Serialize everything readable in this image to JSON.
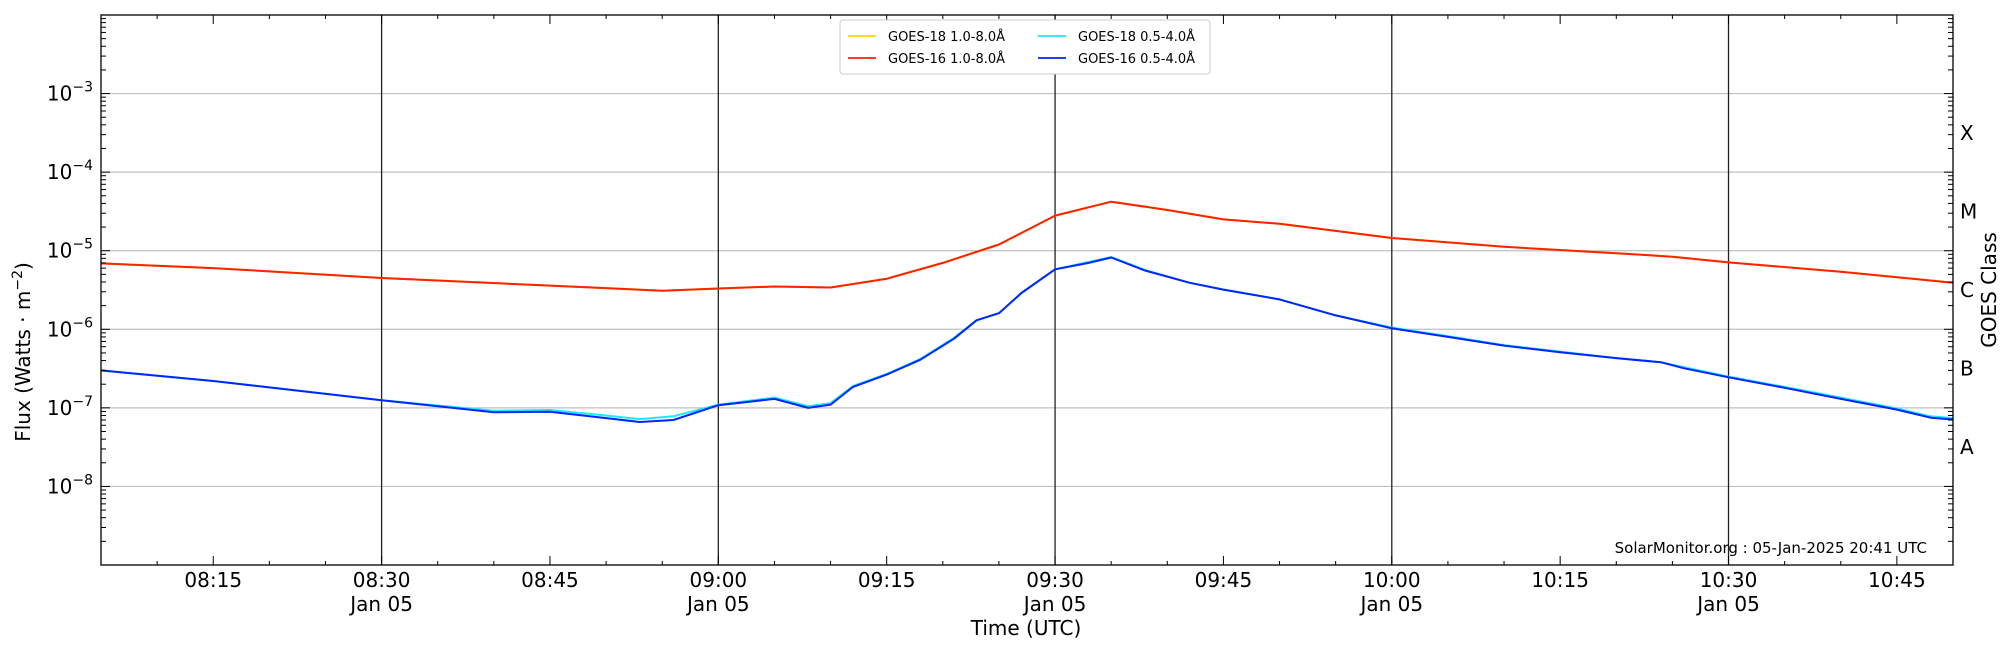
{
  "chart_data": {
    "type": "line",
    "xlabel": "Time (UTC)",
    "ylabel": "Flux (Watts · m",
    "ylabel_sup": "−2",
    "ylabel_end": ")",
    "right_label": "GOES Class",
    "credit": "SolarMonitor.org : 05-Jan-2025 20:41 UTC",
    "yscale": "log",
    "ylim": [
      1e-09,
      0.01
    ],
    "xlim": [
      "08:05",
      "10:50"
    ],
    "grid": "horizontal",
    "legend_position": "top-center",
    "y_ticks": [
      {
        "value": 1e-08,
        "base": "10",
        "exp": "−8"
      },
      {
        "value": 1e-07,
        "base": "10",
        "exp": "−7"
      },
      {
        "value": 1e-06,
        "base": "10",
        "exp": "−6"
      },
      {
        "value": 1e-05,
        "base": "10",
        "exp": "−5"
      },
      {
        "value": 0.0001,
        "base": "10",
        "exp": "−4"
      },
      {
        "value": 0.001,
        "base": "10",
        "exp": "−3"
      }
    ],
    "goes_classes": [
      {
        "label": "A",
        "value": 3.16e-08
      },
      {
        "label": "B",
        "value": 3.16e-07
      },
      {
        "label": "C",
        "value": 3.16e-06
      },
      {
        "label": "M",
        "value": 3.16e-05
      },
      {
        "label": "X",
        "value": 0.000316
      }
    ],
    "x_ticks": [
      {
        "time": "08:15",
        "line1": "08:15",
        "line2": "",
        "major": false
      },
      {
        "time": "08:30",
        "line1": "08:30",
        "line2": "Jan 05",
        "major": true
      },
      {
        "time": "08:45",
        "line1": "08:45",
        "line2": "",
        "major": false
      },
      {
        "time": "09:00",
        "line1": "09:00",
        "line2": "Jan 05",
        "major": true
      },
      {
        "time": "09:15",
        "line1": "09:15",
        "line2": "",
        "major": false
      },
      {
        "time": "09:30",
        "line1": "09:30",
        "line2": "Jan 05",
        "major": true
      },
      {
        "time": "09:45",
        "line1": "09:45",
        "line2": "",
        "major": false
      },
      {
        "time": "10:00",
        "line1": "10:00",
        "line2": "Jan 05",
        "major": true
      },
      {
        "time": "10:15",
        "line1": "10:15",
        "line2": "",
        "major": false
      },
      {
        "time": "10:30",
        "line1": "10:30",
        "line2": "Jan 05",
        "major": true
      },
      {
        "time": "10:45",
        "line1": "10:45",
        "line2": "",
        "major": false
      }
    ],
    "series": [
      {
        "name": "GOES-18 1.0-8.0Å",
        "color": "#ffd700",
        "points": [
          [
            "08:05",
            6.9e-06
          ],
          [
            "08:15",
            6e-06
          ],
          [
            "08:30",
            4.5e-06
          ],
          [
            "08:45",
            3.6e-06
          ],
          [
            "08:55",
            3.1e-06
          ],
          [
            "09:00",
            3.3e-06
          ],
          [
            "09:05",
            3.5e-06
          ],
          [
            "09:10",
            3.4e-06
          ],
          [
            "09:15",
            4.4e-06
          ],
          [
            "09:20",
            7e-06
          ],
          [
            "09:25",
            1.2e-05
          ],
          [
            "09:30",
            2.8e-05
          ],
          [
            "09:35",
            4.2e-05
          ],
          [
            "09:40",
            3.3e-05
          ],
          [
            "09:45",
            2.5e-05
          ],
          [
            "09:50",
            2.2e-05
          ],
          [
            "10:00",
            1.45e-05
          ],
          [
            "10:10",
            1.12e-05
          ],
          [
            "10:20",
            9.3e-06
          ],
          [
            "10:25",
            8.4e-06
          ],
          [
            "10:30",
            7.1e-06
          ],
          [
            "10:40",
            5.4e-06
          ],
          [
            "10:50",
            3.9e-06
          ]
        ]
      },
      {
        "name": "GOES-16 1.0-8.0Å",
        "color": "#ff2200",
        "points": [
          [
            "08:05",
            6.9e-06
          ],
          [
            "08:15",
            6e-06
          ],
          [
            "08:30",
            4.5e-06
          ],
          [
            "08:45",
            3.6e-06
          ],
          [
            "08:55",
            3.1e-06
          ],
          [
            "09:00",
            3.3e-06
          ],
          [
            "09:05",
            3.5e-06
          ],
          [
            "09:10",
            3.4e-06
          ],
          [
            "09:15",
            4.4e-06
          ],
          [
            "09:20",
            7e-06
          ],
          [
            "09:25",
            1.2e-05
          ],
          [
            "09:30",
            2.8e-05
          ],
          [
            "09:35",
            4.2e-05
          ],
          [
            "09:40",
            3.3e-05
          ],
          [
            "09:45",
            2.5e-05
          ],
          [
            "09:50",
            2.2e-05
          ],
          [
            "10:00",
            1.45e-05
          ],
          [
            "10:10",
            1.12e-05
          ],
          [
            "10:20",
            9.3e-06
          ],
          [
            "10:25",
            8.4e-06
          ],
          [
            "10:30",
            7.1e-06
          ],
          [
            "10:40",
            5.4e-06
          ],
          [
            "10:50",
            3.9e-06
          ]
        ]
      },
      {
        "name": "GOES-18 0.5-4.0Å",
        "color": "#22e5ff",
        "points": [
          [
            "08:05",
            3e-07
          ],
          [
            "08:15",
            2.2e-07
          ],
          [
            "08:30",
            1.25e-07
          ],
          [
            "08:40",
            9.2e-08
          ],
          [
            "08:45",
            9.4e-08
          ],
          [
            "08:50",
            8e-08
          ],
          [
            "08:53",
            7.2e-08
          ],
          [
            "08:56",
            7.8e-08
          ],
          [
            "09:00",
            1.1e-07
          ],
          [
            "09:05",
            1.35e-07
          ],
          [
            "09:08",
            1.05e-07
          ],
          [
            "09:10",
            1.15e-07
          ],
          [
            "09:12",
            1.9e-07
          ],
          [
            "09:15",
            2.7e-07
          ],
          [
            "09:18",
            4.2e-07
          ],
          [
            "09:21",
            7.8e-07
          ],
          [
            "09:23",
            1.3e-06
          ],
          [
            "09:25",
            1.6e-06
          ],
          [
            "09:27",
            2.9e-06
          ],
          [
            "09:30",
            5.8e-06
          ],
          [
            "09:33",
            7.2e-06
          ],
          [
            "09:35",
            8.3e-06
          ],
          [
            "09:38",
            5.7e-06
          ],
          [
            "09:42",
            3.9e-06
          ],
          [
            "09:45",
            3.2e-06
          ],
          [
            "09:50",
            2.4e-06
          ],
          [
            "09:55",
            1.5e-06
          ],
          [
            "10:00",
            1.05e-06
          ],
          [
            "10:05",
            8.2e-07
          ],
          [
            "10:10",
            6.3e-07
          ],
          [
            "10:15",
            5.2e-07
          ],
          [
            "10:20",
            4.3e-07
          ],
          [
            "10:24",
            3.8e-07
          ],
          [
            "10:26",
            3.3e-07
          ],
          [
            "10:30",
            2.5e-07
          ],
          [
            "10:35",
            1.85e-07
          ],
          [
            "10:40",
            1.35e-07
          ],
          [
            "10:45",
            9.8e-08
          ],
          [
            "10:48",
            7.8e-08
          ],
          [
            "10:50",
            7.4e-08
          ]
        ]
      },
      {
        "name": "GOES-16 0.5-4.0Å",
        "color": "#0026ff",
        "points": [
          [
            "08:05",
            3e-07
          ],
          [
            "08:15",
            2.2e-07
          ],
          [
            "08:30",
            1.25e-07
          ],
          [
            "08:40",
            8.8e-08
          ],
          [
            "08:45",
            8.9e-08
          ],
          [
            "08:50",
            7.4e-08
          ],
          [
            "08:53",
            6.6e-08
          ],
          [
            "08:56",
            7e-08
          ],
          [
            "09:00",
            1.08e-07
          ],
          [
            "09:05",
            1.3e-07
          ],
          [
            "09:08",
            1e-07
          ],
          [
            "09:10",
            1.1e-07
          ],
          [
            "09:12",
            1.85e-07
          ],
          [
            "09:15",
            2.65e-07
          ],
          [
            "09:18",
            4.1e-07
          ],
          [
            "09:21",
            7.6e-07
          ],
          [
            "09:23",
            1.3e-06
          ],
          [
            "09:25",
            1.6e-06
          ],
          [
            "09:27",
            2.9e-06
          ],
          [
            "09:30",
            5.8e-06
          ],
          [
            "09:33",
            7e-06
          ],
          [
            "09:35",
            8.2e-06
          ],
          [
            "09:38",
            5.6e-06
          ],
          [
            "09:42",
            3.9e-06
          ],
          [
            "09:45",
            3.2e-06
          ],
          [
            "09:50",
            2.4e-06
          ],
          [
            "09:55",
            1.5e-06
          ],
          [
            "10:00",
            1.03e-06
          ],
          [
            "10:05",
            8e-07
          ],
          [
            "10:10",
            6.2e-07
          ],
          [
            "10:15",
            5.1e-07
          ],
          [
            "10:20",
            4.3e-07
          ],
          [
            "10:24",
            3.8e-07
          ],
          [
            "10:26",
            3.2e-07
          ],
          [
            "10:30",
            2.45e-07
          ],
          [
            "10:35",
            1.8e-07
          ],
          [
            "10:40",
            1.3e-07
          ],
          [
            "10:45",
            9.5e-08
          ],
          [
            "10:48",
            7.5e-08
          ],
          [
            "10:50",
            7.1e-08
          ]
        ]
      }
    ]
  }
}
